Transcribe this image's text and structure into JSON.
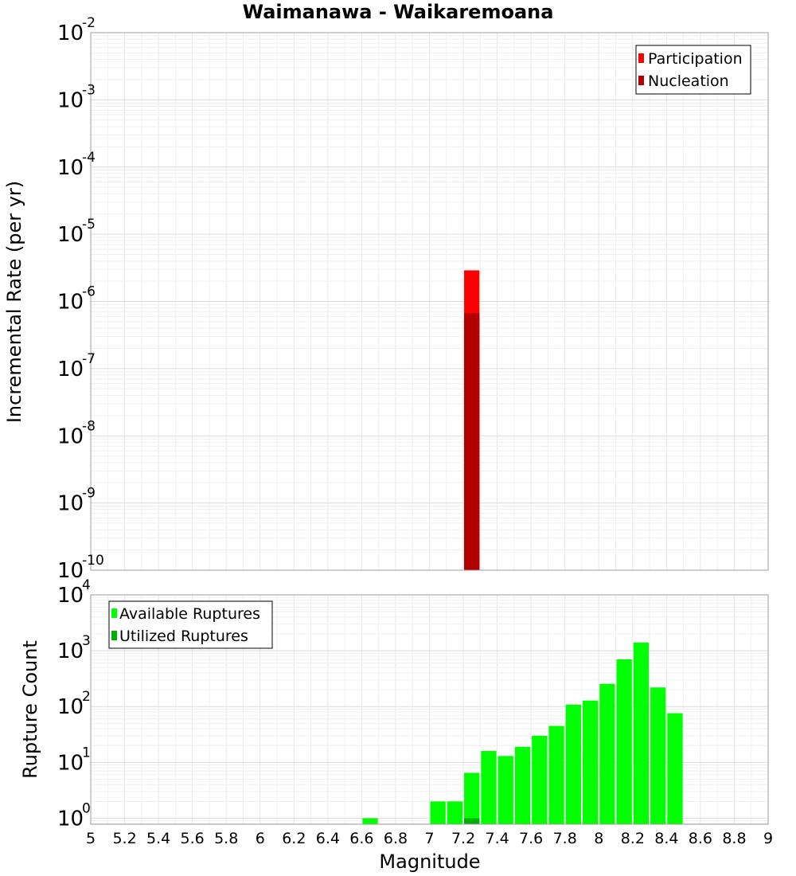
{
  "chart_data": [
    {
      "type": "bar",
      "title": "Waimanawa - Waikaremoana",
      "ylabel": "Incremental Rate (per yr)",
      "yscale": "log",
      "ylim": [
        1e-10,
        0.01
      ],
      "xlim": [
        5,
        9
      ],
      "grid": true,
      "legend_position": "top-right",
      "y_tick_labels": [
        {
          "base": "10",
          "exp": "-10"
        },
        {
          "base": "10",
          "exp": "-9"
        },
        {
          "base": "10",
          "exp": "-8"
        },
        {
          "base": "10",
          "exp": "-7"
        },
        {
          "base": "10",
          "exp": "-6"
        },
        {
          "base": "10",
          "exp": "-5"
        },
        {
          "base": "10",
          "exp": "-4"
        },
        {
          "base": "10",
          "exp": "-3"
        },
        {
          "base": "10",
          "exp": "-2"
        }
      ],
      "y_tick_values": [
        1e-10,
        1e-09,
        1e-08,
        1e-07,
        1e-06,
        1e-05,
        0.0001,
        0.001,
        0.01
      ],
      "series": [
        {
          "name": "Participation",
          "color": "#ff0000",
          "points": [
            {
              "x": 7.25,
              "y": 2.9e-06
            }
          ]
        },
        {
          "name": "Nucleation",
          "color": "#b00000",
          "points": [
            {
              "x": 7.25,
              "y": 6.7e-07
            }
          ]
        }
      ],
      "bin_width": 0.1
    },
    {
      "type": "bar",
      "xlabel": "Magnitude",
      "ylabel": "Rupture Count",
      "yscale": "log",
      "ylim": [
        0.78,
        10000
      ],
      "xlim": [
        5,
        9
      ],
      "grid": true,
      "legend_position": "top-left",
      "x_tick_labels": [
        "5",
        "5.2",
        "5.4",
        "5.6",
        "5.8",
        "6",
        "6.2",
        "6.4",
        "6.6",
        "6.8",
        "7",
        "7.2",
        "7.4",
        "7.6",
        "7.8",
        "8",
        "8.2",
        "8.4",
        "8.6",
        "8.8",
        "9"
      ],
      "x_tick_values": [
        5,
        5.2,
        5.4,
        5.6,
        5.8,
        6,
        6.2,
        6.4,
        6.6,
        6.8,
        7,
        7.2,
        7.4,
        7.6,
        7.8,
        8,
        8.2,
        8.4,
        8.6,
        8.8,
        9
      ],
      "y_tick_labels": [
        {
          "base": "10",
          "exp": "0"
        },
        {
          "base": "10",
          "exp": "1"
        },
        {
          "base": "10",
          "exp": "2"
        },
        {
          "base": "10",
          "exp": "3"
        },
        {
          "base": "10",
          "exp": "4"
        }
      ],
      "y_tick_values": [
        1,
        10,
        100,
        1000,
        10000
      ],
      "series": [
        {
          "name": "Available Ruptures",
          "color": "#00ff00",
          "points": [
            {
              "x": 6.65,
              "y": 1
            },
            {
              "x": 7.05,
              "y": 2
            },
            {
              "x": 7.15,
              "y": 2
            },
            {
              "x": 7.25,
              "y": 6.5
            },
            {
              "x": 7.35,
              "y": 16
            },
            {
              "x": 7.45,
              "y": 13
            },
            {
              "x": 7.55,
              "y": 19
            },
            {
              "x": 7.65,
              "y": 30
            },
            {
              "x": 7.75,
              "y": 45
            },
            {
              "x": 7.85,
              "y": 108
            },
            {
              "x": 7.95,
              "y": 128
            },
            {
              "x": 8.05,
              "y": 255
            },
            {
              "x": 8.15,
              "y": 700
            },
            {
              "x": 8.25,
              "y": 1400
            },
            {
              "x": 8.35,
              "y": 220
            },
            {
              "x": 8.45,
              "y": 76
            }
          ]
        },
        {
          "name": "Utilized Ruptures",
          "color": "#00b000",
          "points": [
            {
              "x": 7.25,
              "y": 1
            }
          ]
        }
      ],
      "bin_width": 0.1
    }
  ]
}
